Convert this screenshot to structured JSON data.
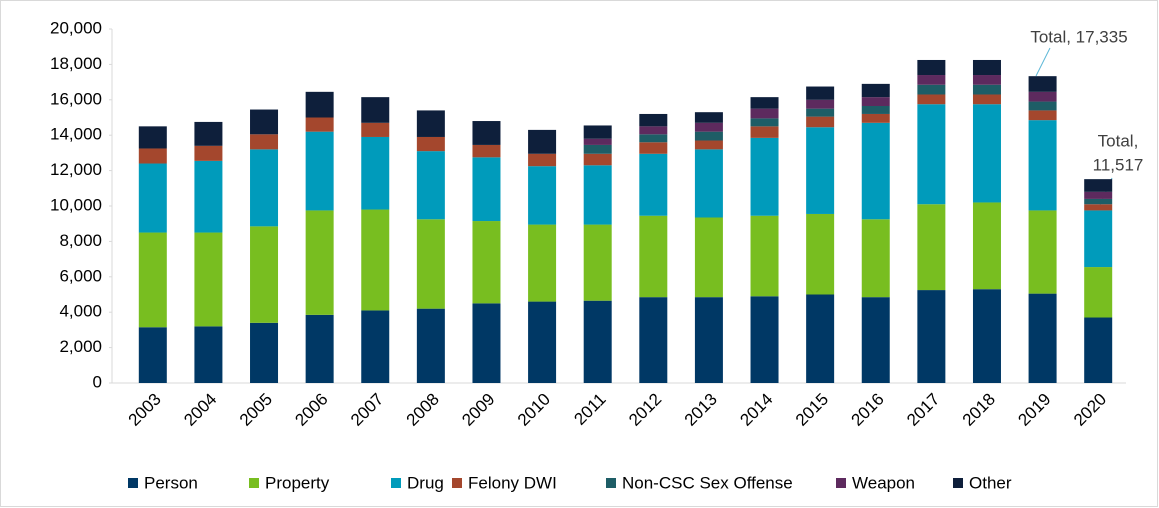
{
  "chart_data": {
    "type": "stacked_bar",
    "categories": [
      "2003",
      "2004",
      "2005",
      "2006",
      "2007",
      "2008",
      "2009",
      "2010",
      "2011",
      "2012",
      "2013",
      "2014",
      "2015",
      "2016",
      "2017",
      "2018",
      "2019",
      "2020"
    ],
    "series": [
      {
        "name": "Person",
        "color": "#003865",
        "values": [
          3150,
          3200,
          3400,
          3850,
          4100,
          4200,
          4500,
          4600,
          4650,
          4850,
          4850,
          4900,
          5000,
          4850,
          5250,
          5300,
          5050,
          3700
        ]
      },
      {
        "name": "Property",
        "color": "#78be20",
        "values": [
          5350,
          5300,
          5450,
          5900,
          5700,
          5050,
          4650,
          4350,
          4300,
          4600,
          4500,
          4550,
          4550,
          4400,
          4850,
          4900,
          4700,
          2850
        ]
      },
      {
        "name": "Drug",
        "color": "#009bbb",
        "values": [
          3900,
          4050,
          4350,
          4450,
          4100,
          3850,
          3600,
          3300,
          3350,
          3500,
          3850,
          4400,
          4900,
          5450,
          5650,
          5550,
          5100,
          3200
        ]
      },
      {
        "name": "Felony DWI",
        "color": "#a4472d",
        "values": [
          850,
          850,
          850,
          800,
          800,
          800,
          700,
          700,
          650,
          650,
          500,
          650,
          600,
          500,
          550,
          550,
          550,
          350
        ]
      },
      {
        "name": "Non-CSC Sex Offense",
        "color": "#1e5d66",
        "values": [
          0,
          0,
          0,
          0,
          0,
          0,
          0,
          0,
          500,
          450,
          500,
          450,
          450,
          450,
          550,
          550,
          500,
          300
        ]
      },
      {
        "name": "Weapon",
        "color": "#5d2a5e",
        "values": [
          0,
          0,
          0,
          0,
          0,
          0,
          0,
          0,
          350,
          450,
          500,
          550,
          500,
          500,
          550,
          550,
          550,
          400
        ]
      },
      {
        "name": "Other",
        "color": "#0e1f3b",
        "values": [
          1250,
          1350,
          1400,
          1450,
          1450,
          1500,
          1350,
          1350,
          750,
          700,
          600,
          650,
          750,
          750,
          850,
          850,
          885,
          717
        ]
      }
    ],
    "ylim": [
      0,
      20000
    ],
    "yticks": [
      0,
      {
        "value": 2000,
        "label": "2,000"
      },
      {
        "value": 4000,
        "label": "4,000"
      },
      {
        "value": 6000,
        "label": "6,000"
      },
      {
        "value": 8000,
        "label": "8,000"
      },
      {
        "value": 10000,
        "label": "10,000"
      },
      {
        "value": 12000,
        "label": "12,000"
      },
      {
        "value": 14000,
        "label": "14,000"
      },
      {
        "value": 16000,
        "label": "16,000"
      },
      {
        "value": 18000,
        "label": "18,000"
      },
      {
        "value": 20000,
        "label": "20,000"
      }
    ],
    "annotations": [
      {
        "text": "Total, 17,335"
      },
      {
        "text": [
          "Total,",
          "11,517"
        ]
      }
    ],
    "legend": "bottom"
  }
}
